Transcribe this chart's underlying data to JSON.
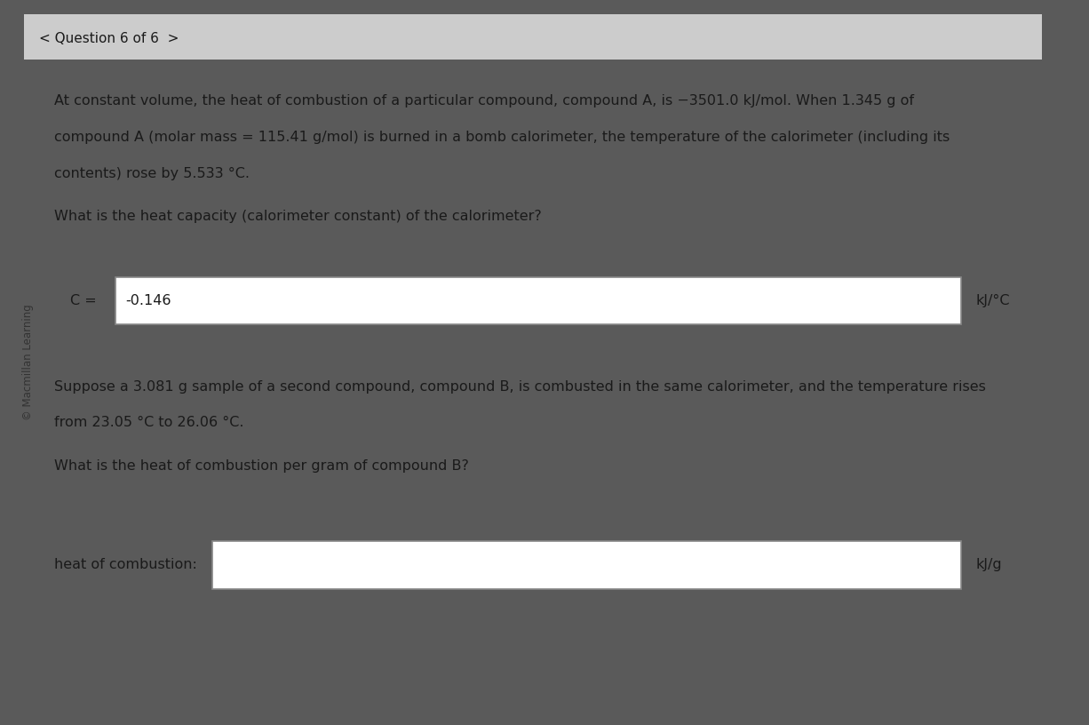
{
  "bg_color": "#c8c8c8",
  "panel_color": "#d8d8d8",
  "header_bg": "#e0e0e0",
  "title_text": "< Question 6 of 6  >",
  "sidebar_text": "© Macmillan Learning",
  "paragraph1": "At constant volume, the heat of combustion of a particular compound, compound A, is −3501.0 kJ/mol. When 1.345 g of\ncompound A (molar mass = 115.41 g/mol) is burned in a bomb calorimeter, the temperature of the calorimeter (including its\ncontents) rose by 5.533 °C.",
  "question1": "What is the heat capacity (calorimeter constant) of the calorimeter?",
  "label_C": "C =",
  "answer1": "-0.146",
  "unit1": "kJ/°C",
  "paragraph2": "Suppose a 3.081 g sample of a second compound, compound B, is combusted in the same calorimeter, and the temperature rises\nfrom 23.05 °C to 26.06 °C.",
  "question2": "What is the heat of combustion per gram of compound B?",
  "label_hoc": "heat of combustion:",
  "answer2": "",
  "unit2": "kJ/g",
  "text_color": "#1a1a1a",
  "box_color": "#ffffff",
  "box_border": "#888888",
  "font_size_body": 11.5,
  "font_size_title": 11,
  "font_size_label": 11.5
}
